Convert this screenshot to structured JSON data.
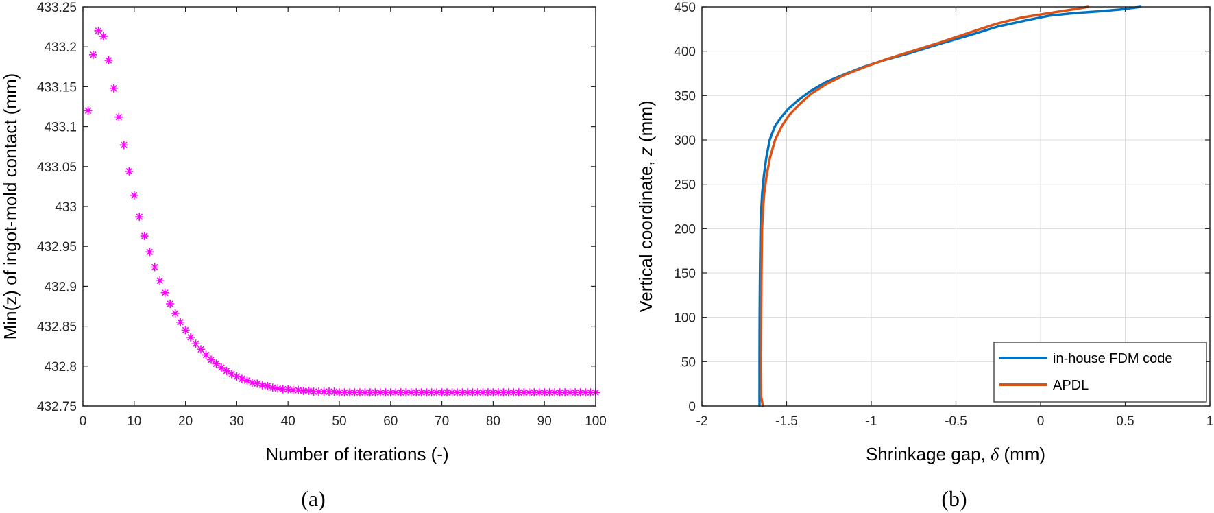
{
  "chart_data": [
    {
      "type": "scatter",
      "marker": "asterisk",
      "color": "#ff00ff",
      "caption": "(a)",
      "xlabel": "Number of iterations (-)",
      "ylabel": "Min(z) of ingot-mold contact (mm)",
      "xlim": [
        0,
        100
      ],
      "ylim": [
        432.75,
        433.25
      ],
      "grid": false,
      "xticks": [
        "0",
        "10",
        "20",
        "30",
        "40",
        "50",
        "60",
        "70",
        "80",
        "90",
        "100"
      ],
      "yticks": [
        "432.75",
        "432.8",
        "432.85",
        "432.9",
        "432.95",
        "433",
        "433.05",
        "433.1",
        "433.15",
        "433.2",
        "433.25"
      ],
      "series": [
        {
          "x": [
            1,
            2,
            3,
            4,
            5,
            6,
            7,
            8,
            9,
            10,
            11,
            12,
            13,
            14,
            15,
            16,
            17,
            18,
            19,
            20,
            21,
            22,
            23,
            24,
            25,
            26,
            27,
            28,
            29,
            30,
            31,
            32,
            33,
            34,
            35,
            36,
            37,
            38,
            39,
            40,
            41,
            42,
            43,
            44,
            45,
            46,
            47,
            48,
            49,
            50,
            51,
            52,
            53,
            54,
            55,
            56,
            57,
            58,
            59,
            60,
            61,
            62,
            63,
            64,
            65,
            66,
            67,
            68,
            69,
            70,
            71,
            72,
            73,
            74,
            75,
            76,
            77,
            78,
            79,
            80,
            81,
            82,
            83,
            84,
            85,
            86,
            87,
            88,
            89,
            90,
            91,
            92,
            93,
            94,
            95,
            96,
            97,
            98,
            99,
            100
          ],
          "y": [
            433.12,
            433.19,
            433.22,
            433.213,
            433.183,
            433.148,
            433.112,
            433.077,
            433.044,
            433.014,
            432.987,
            432.963,
            432.943,
            432.924,
            432.907,
            432.892,
            432.878,
            432.866,
            432.855,
            432.845,
            432.836,
            432.828,
            432.821,
            432.814,
            432.808,
            432.803,
            432.798,
            432.794,
            432.79,
            432.787,
            432.784,
            432.782,
            432.779,
            432.778,
            432.776,
            432.775,
            432.773,
            432.772,
            432.771,
            432.771,
            432.77,
            432.77,
            432.769,
            432.769,
            432.768,
            432.768,
            432.768,
            432.768,
            432.768,
            432.767,
            432.767,
            432.767,
            432.767,
            432.767,
            432.767,
            432.767,
            432.767,
            432.767,
            432.767,
            432.767,
            432.767,
            432.767,
            432.767,
            432.767,
            432.767,
            432.767,
            432.767,
            432.767,
            432.767,
            432.767,
            432.767,
            432.767,
            432.767,
            432.767,
            432.767,
            432.767,
            432.767,
            432.767,
            432.767,
            432.767,
            432.767,
            432.767,
            432.767,
            432.767,
            432.767,
            432.767,
            432.767,
            432.767,
            432.767,
            432.767,
            432.767,
            432.767,
            432.767,
            432.767,
            432.767,
            432.767,
            432.767,
            432.767,
            432.767,
            432.767
          ]
        }
      ]
    },
    {
      "type": "line",
      "caption": "(b)",
      "xlabel_text": "Shrinkage gap, ",
      "xlabel_symbol": "δ",
      "xlabel_unit": " (mm)",
      "ylabel_text": "Vertical coordinate,  ",
      "ylabel_symbol": "z",
      "ylabel_unit": " (mm)",
      "xlim": [
        -2,
        1
      ],
      "ylim": [
        0,
        450
      ],
      "grid": true,
      "legend_position": "bottom-right",
      "xticks": [
        "-2",
        "-1.5",
        "-1",
        "-0.5",
        "0",
        "0.5",
        "1"
      ],
      "yticks": [
        "0",
        "50",
        "100",
        "150",
        "200",
        "250",
        "300",
        "350",
        "400",
        "450"
      ],
      "series": [
        {
          "name": "in-house FDM code",
          "color": "#0072BD",
          "x": [
            -1.66,
            -1.66,
            -1.659,
            -1.657,
            -1.654,
            -1.65,
            -1.644,
            -1.634,
            -1.62,
            -1.6,
            -1.57,
            -1.535,
            -1.49,
            -1.43,
            -1.36,
            -1.27,
            -1.17,
            -1.05,
            -0.92,
            -0.77,
            -0.6,
            -0.42,
            -0.25,
            -0.08,
            0.05,
            0.2,
            0.35,
            0.47,
            0.59
          ],
          "y": [
            0,
            50,
            100,
            150,
            200,
            220,
            240,
            260,
            280,
            300,
            315,
            325,
            335,
            345,
            355,
            365,
            373,
            382,
            390,
            398,
            408,
            418,
            428,
            435,
            440,
            443,
            445,
            447,
            450
          ]
        },
        {
          "name": "APDL",
          "color": "#D95319",
          "x": [
            -1.64,
            -1.643,
            -1.65,
            -1.651,
            -1.65,
            -1.648,
            -1.645,
            -1.64,
            -1.632,
            -1.618,
            -1.598,
            -1.568,
            -1.53,
            -1.485,
            -1.425,
            -1.355,
            -1.265,
            -1.16,
            -1.04,
            -0.91,
            -0.76,
            -0.59,
            -0.42,
            -0.26,
            -0.11,
            0.02,
            0.12,
            0.22,
            0.28
          ],
          "y": [
            0,
            3,
            10,
            50,
            100,
            150,
            200,
            220,
            240,
            260,
            280,
            300,
            315,
            328,
            340,
            352,
            363,
            373,
            382,
            391,
            400,
            410,
            421,
            431,
            438,
            442,
            445,
            448,
            450
          ]
        }
      ]
    }
  ]
}
